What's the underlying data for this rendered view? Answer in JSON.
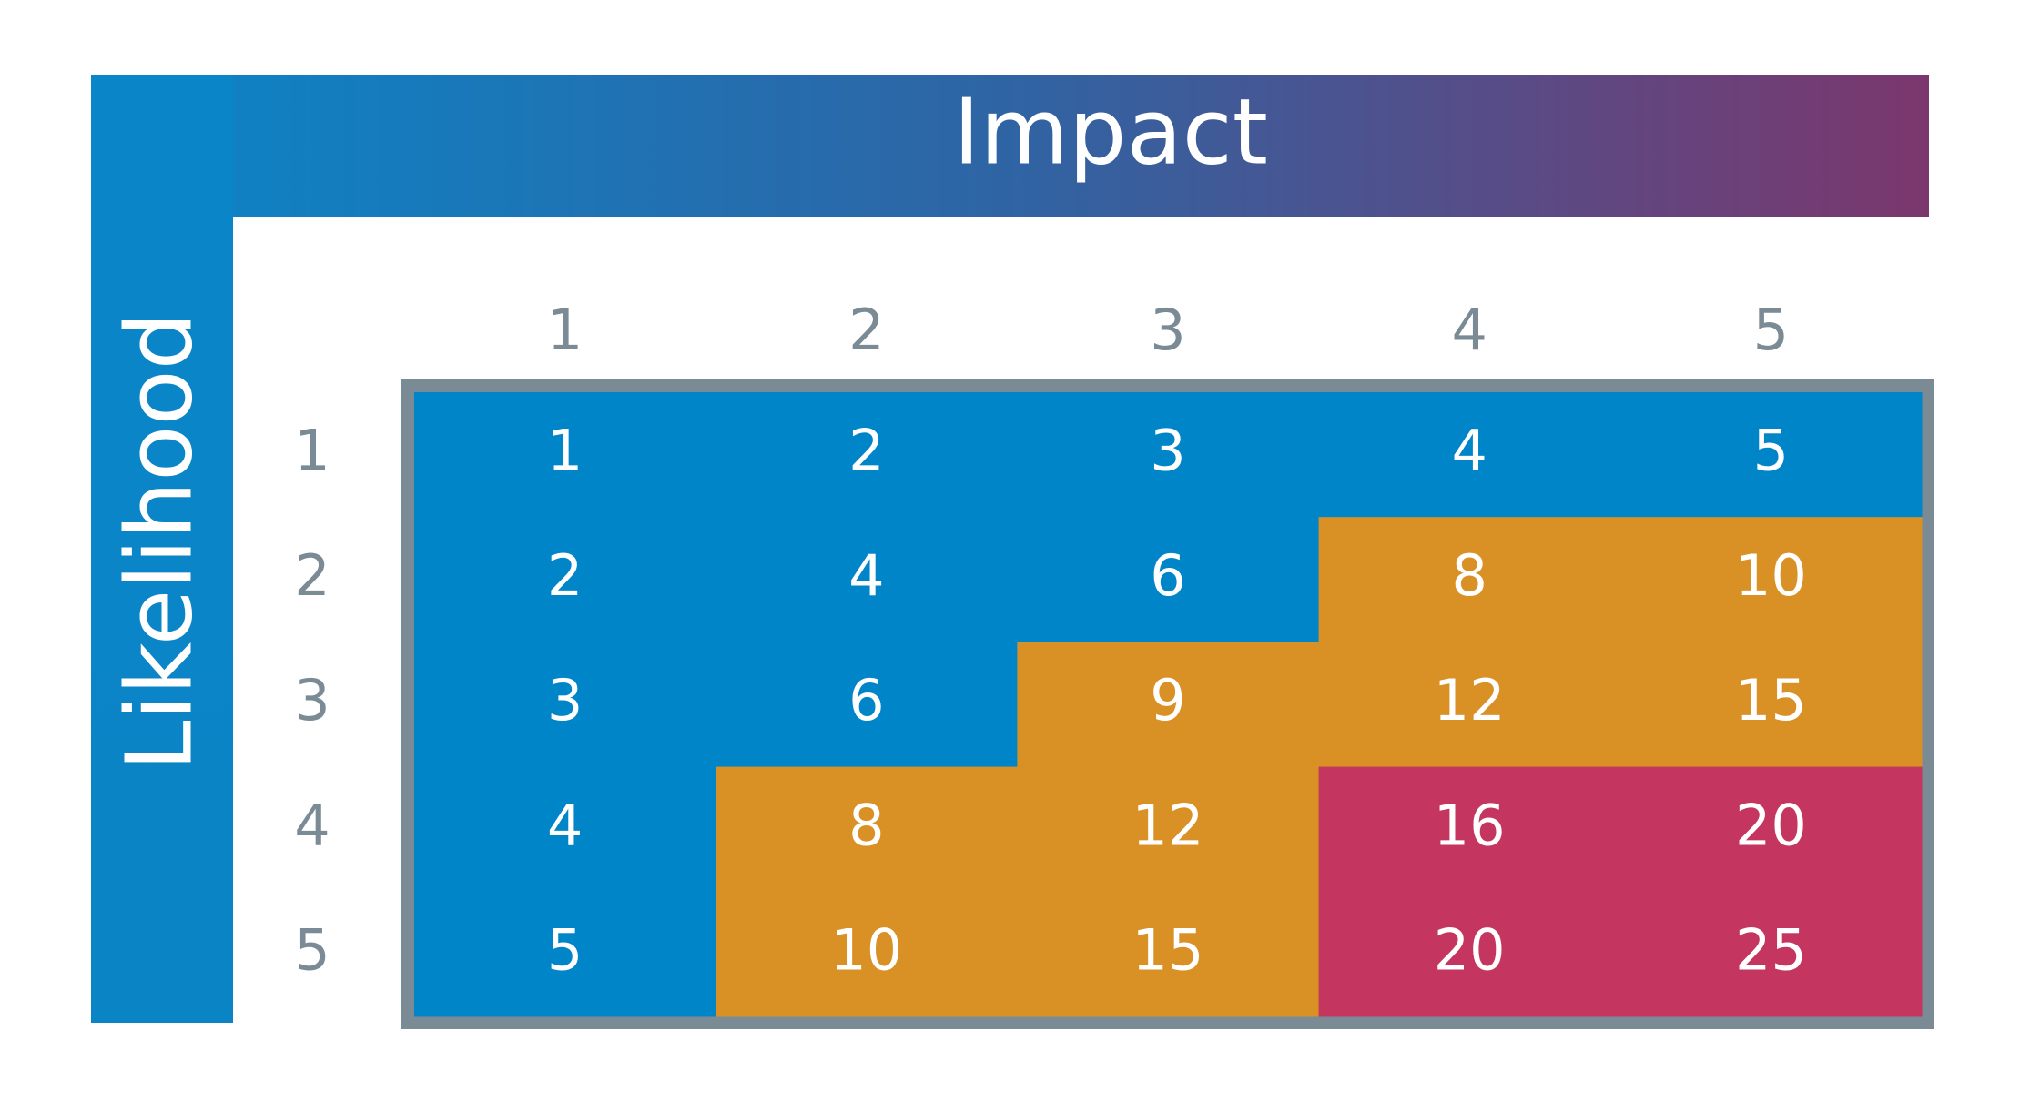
{
  "header": {
    "title": "Impact"
  },
  "side_label": "Likelihood",
  "table": {
    "column_headers": [
      1,
      2,
      3,
      4,
      5
    ],
    "row_headers": [
      1,
      2,
      3,
      4,
      5
    ],
    "rows": [
      [
        1,
        2,
        3,
        4,
        5
      ],
      [
        2,
        4,
        6,
        8,
        10
      ],
      [
        3,
        6,
        9,
        12,
        15
      ],
      [
        4,
        8,
        12,
        16,
        20
      ],
      [
        5,
        10,
        15,
        20,
        25
      ]
    ],
    "cell_colors": [
      [
        "#0085c8",
        "#0085c8",
        "#0085c8",
        "#0085c8",
        "#0085c8"
      ],
      [
        "#0085c8",
        "#0085c8",
        "#0085c8",
        "#d99125",
        "#d99125"
      ],
      [
        "#0085c8",
        "#0085c8",
        "#d99125",
        "#d99125",
        "#d99125"
      ],
      [
        "#0085c8",
        "#d99125",
        "#d99125",
        "#c43660",
        "#c43660"
      ],
      [
        "#0085c8",
        "#d99125",
        "#d99125",
        "#c43660",
        "#c43660"
      ]
    ]
  }
}
